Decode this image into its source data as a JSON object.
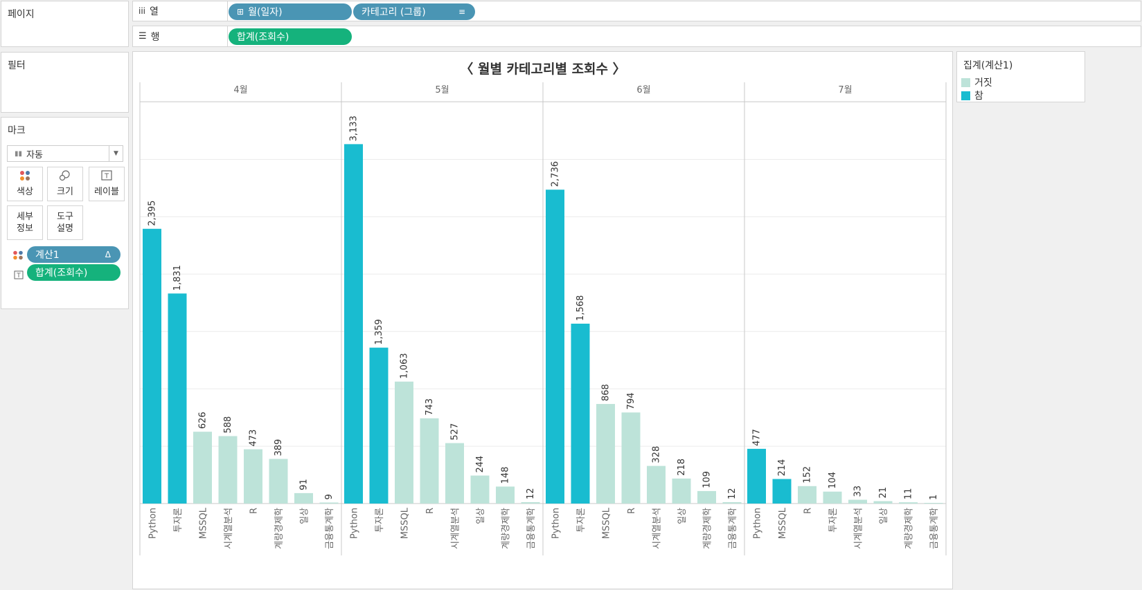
{
  "shelves": {
    "pages_label": "페이지",
    "columns_label": "열",
    "rows_label": "행",
    "column_pills": [
      "월(일자)",
      "카테고리 (그룹)"
    ],
    "row_pills": [
      "합계(조회수)"
    ]
  },
  "filters": {
    "title": "필터"
  },
  "marks": {
    "title": "마크",
    "mark_type": "자동",
    "buttons": [
      "색상",
      "크기",
      "레이블",
      "세부\n정보",
      "도구\n설명"
    ],
    "fields": [
      {
        "label": "계산1",
        "suffix": "Δ",
        "kind": "color"
      },
      {
        "label": "합계(조회수)",
        "kind": "label"
      }
    ]
  },
  "legend": {
    "title": "집계(계산1)",
    "items": [
      {
        "label": "거짓",
        "color": "#bde3d9"
      },
      {
        "label": "참",
        "color": "#19bcd0"
      }
    ]
  },
  "colors": {
    "true": "#19bcd0",
    "false": "#bde3d9",
    "pill_blue": "#4a95b4",
    "pill_green": "#15b27c"
  },
  "chart_data": {
    "type": "bar",
    "title": "〈 월별 카테고리별 조회수 〉",
    "ylim": [
      0,
      3500
    ],
    "grid": true,
    "legend_position": "right",
    "panels": [
      {
        "month": "4월",
        "categories": [
          "Python",
          "투자론",
          "MSSQL",
          "시계열분석",
          "R",
          "계량경제학",
          "일상",
          "금융통계학"
        ],
        "values": [
          2395,
          1831,
          626,
          588,
          473,
          389,
          91,
          9
        ],
        "highlight": [
          true,
          true,
          false,
          false,
          false,
          false,
          false,
          false
        ],
        "labels": [
          "2,395",
          "1,831",
          "626",
          "588",
          "473",
          "389",
          "91",
          "9"
        ]
      },
      {
        "month": "5월",
        "categories": [
          "Python",
          "투자론",
          "MSSQL",
          "R",
          "시계열분석",
          "일상",
          "계량경제학",
          "금융통계학"
        ],
        "values": [
          3133,
          1359,
          1063,
          743,
          527,
          244,
          148,
          12
        ],
        "highlight": [
          true,
          true,
          false,
          false,
          false,
          false,
          false,
          false
        ],
        "labels": [
          "3,133",
          "1,359",
          "1,063",
          "743",
          "527",
          "244",
          "148",
          "12"
        ]
      },
      {
        "month": "6월",
        "categories": [
          "Python",
          "투자론",
          "MSSQL",
          "R",
          "시계열분석",
          "일상",
          "계량경제학",
          "금융통계학"
        ],
        "values": [
          2736,
          1568,
          868,
          794,
          328,
          218,
          109,
          12
        ],
        "highlight": [
          true,
          true,
          false,
          false,
          false,
          false,
          false,
          false
        ],
        "labels": [
          "2,736",
          "1,568",
          "868",
          "794",
          "328",
          "218",
          "109",
          "12"
        ]
      },
      {
        "month": "7월",
        "categories": [
          "Python",
          "MSSQL",
          "R",
          "투자론",
          "시계열분석",
          "일상",
          "계량경제학",
          "금융통계학"
        ],
        "values": [
          477,
          214,
          152,
          104,
          33,
          21,
          11,
          1
        ],
        "highlight": [
          true,
          true,
          false,
          false,
          false,
          false,
          false,
          false
        ],
        "labels": [
          "477",
          "214",
          "152",
          "104",
          "33",
          "21",
          "11",
          "1"
        ]
      }
    ]
  }
}
